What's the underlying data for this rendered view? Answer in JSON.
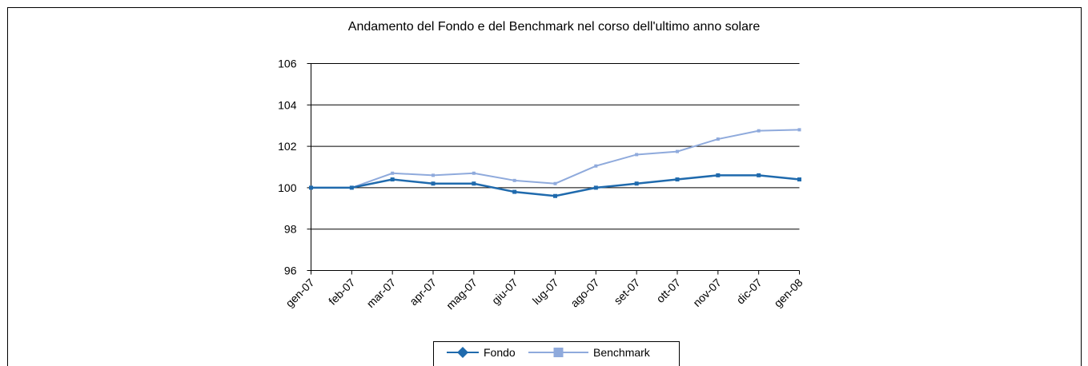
{
  "chart_data": {
    "type": "line",
    "title": "Andamento del Fondo e del Benchmark nel corso dell'ultimo anno solare",
    "categories": [
      "gen-07",
      "feb-07",
      "mar-07",
      "apr-07",
      "mag-07",
      "giu-07",
      "lug-07",
      "ago-07",
      "set-07",
      "ott-07",
      "nov-07",
      "dic-07",
      "gen-08"
    ],
    "series": [
      {
        "name": "Fondo",
        "color": "#1f6aad",
        "values": [
          100,
          100,
          100.4,
          100.2,
          100.2,
          99.8,
          99.6,
          100,
          100.2,
          100.4,
          100.6,
          100.6,
          100.4
        ]
      },
      {
        "name": "Benchmark",
        "color": "#8faadc",
        "values": [
          100,
          100,
          100.7,
          100.6,
          100.7,
          100.35,
          100.2,
          101.05,
          101.6,
          101.75,
          102.35,
          102.75,
          102.8
        ]
      }
    ],
    "ylim": [
      96,
      106
    ],
    "yticks": [
      96,
      98,
      100,
      102,
      104,
      106
    ],
    "grid": true,
    "legend": "bottom"
  }
}
